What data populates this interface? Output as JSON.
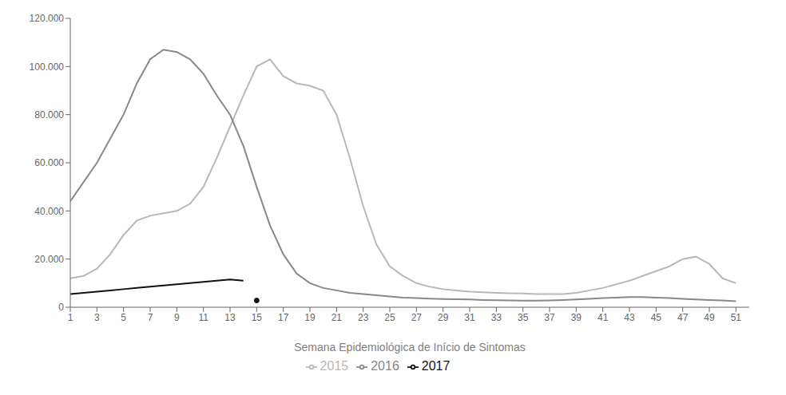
{
  "chart_data": {
    "type": "line",
    "title": "",
    "xlabel": "Semana Epidemiológica de Início de Sintomas",
    "x": [
      1,
      2,
      3,
      4,
      5,
      6,
      7,
      8,
      9,
      10,
      11,
      12,
      13,
      14,
      15,
      16,
      17,
      18,
      19,
      20,
      21,
      22,
      23,
      24,
      25,
      26,
      27,
      28,
      29,
      30,
      31,
      32,
      33,
      34,
      35,
      36,
      37,
      38,
      39,
      40,
      41,
      42,
      43,
      44,
      45,
      46,
      47,
      48,
      49,
      50,
      51
    ],
    "series": [
      {
        "name": "2015",
        "color": "#b8b8b8",
        "values": [
          12000,
          13000,
          16000,
          22000,
          30000,
          36000,
          38000,
          39000,
          40000,
          43000,
          50000,
          62000,
          75000,
          88000,
          100000,
          103000,
          96000,
          93000,
          92000,
          90000,
          80000,
          62000,
          42000,
          26000,
          17000,
          13000,
          10000,
          8500,
          7500,
          7000,
          6500,
          6200,
          6000,
          5800,
          5700,
          5500,
          5500,
          5500,
          6000,
          7000,
          8000,
          9500,
          11000,
          13000,
          15000,
          17000,
          20000,
          21000,
          18000,
          12000,
          10000
        ]
      },
      {
        "name": "2016",
        "color": "#888888",
        "values": [
          44000,
          52000,
          60000,
          70000,
          80000,
          93000,
          103000,
          107000,
          106000,
          103000,
          97000,
          88000,
          80000,
          67000,
          50000,
          34000,
          22000,
          14000,
          10000,
          8000,
          7000,
          6000,
          5500,
          5000,
          4500,
          4000,
          3800,
          3600,
          3400,
          3300,
          3200,
          3000,
          2900,
          2800,
          2700,
          2700,
          2800,
          3000,
          3200,
          3500,
          3800,
          4000,
          4200,
          4200,
          4000,
          3800,
          3500,
          3200,
          3000,
          2800,
          2500
        ]
      },
      {
        "name": "2017",
        "color": "#111111",
        "values": [
          5500,
          6000,
          6500,
          7000,
          7500,
          8000,
          8500,
          9000,
          9500,
          10000,
          10500,
          11000,
          11500,
          11000,
          null,
          null,
          null,
          null,
          null,
          null,
          null,
          null,
          null,
          null,
          null,
          null,
          null,
          null,
          null,
          null,
          null,
          null,
          null,
          null,
          null,
          null,
          null,
          null,
          null,
          null,
          null,
          null,
          null,
          null,
          null,
          null,
          null,
          null,
          null,
          null,
          null
        ]
      },
      {
        "type": "scatter",
        "marker": "circle",
        "color": "#111111",
        "values": [
          null,
          null,
          null,
          null,
          null,
          null,
          null,
          null,
          null,
          null,
          null,
          null,
          null,
          null,
          2800,
          null,
          null,
          null,
          null,
          null,
          null,
          null,
          null,
          null,
          null,
          null,
          null,
          null,
          null,
          null,
          null,
          null,
          null,
          null,
          null,
          null,
          null,
          null,
          null,
          null,
          null,
          null,
          null,
          null,
          null,
          null,
          null,
          null,
          null,
          null,
          null
        ]
      }
    ],
    "xlim": [
      1,
      52
    ],
    "xticks": [
      1,
      3,
      5,
      7,
      9,
      11,
      13,
      15,
      17,
      19,
      21,
      23,
      25,
      27,
      29,
      31,
      33,
      35,
      37,
      39,
      41,
      43,
      45,
      47,
      49,
      51
    ],
    "ylim": [
      0,
      120000
    ],
    "yticks": [
      0,
      {
        "value": 20000,
        "label": "20.000"
      },
      {
        "value": 40000,
        "label": "40.000"
      },
      {
        "value": 60000,
        "label": "60.000"
      },
      {
        "value": 80000,
        "label": "80.000"
      },
      {
        "value": 100000,
        "label": "100.000"
      },
      {
        "value": 120000,
        "label": "120.000"
      }
    ],
    "grid": false,
    "legend": "bottom"
  }
}
